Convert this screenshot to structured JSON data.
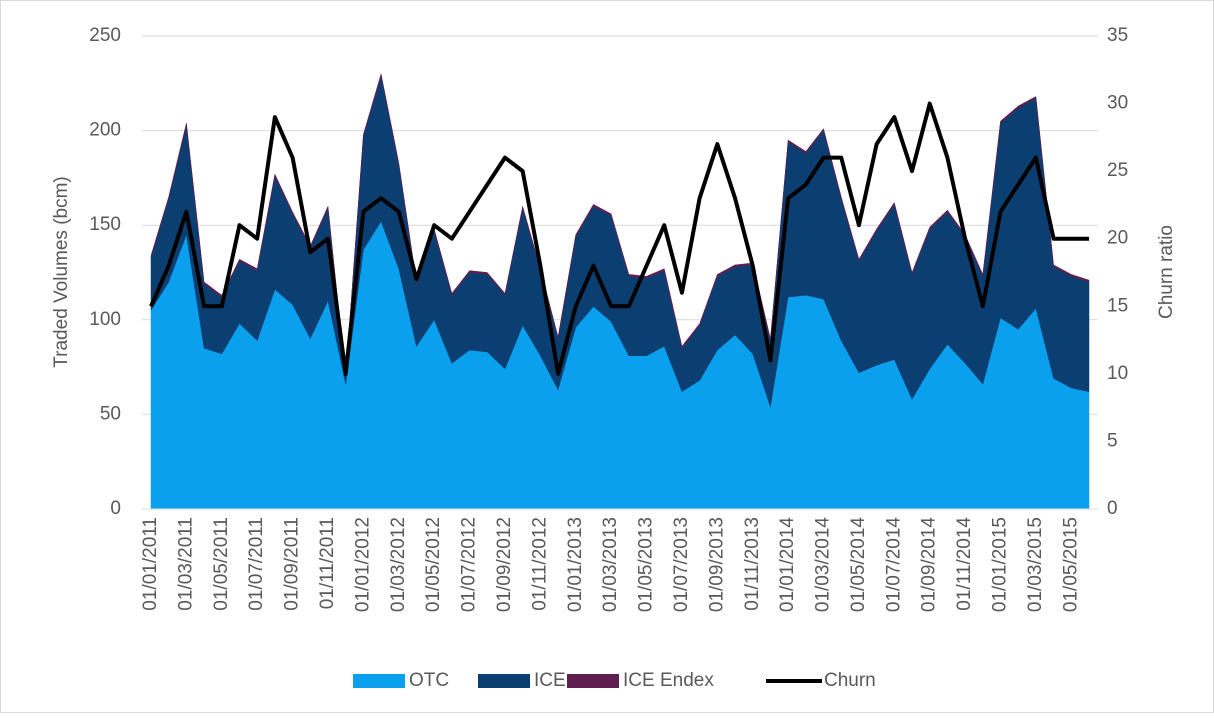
{
  "chart_data": {
    "type": "area",
    "stacked": true,
    "ylabel": "Traded Volumes (bcm)",
    "y2label": "Churn ratio",
    "categories": [
      "01/01/2011",
      null,
      "01/03/2011",
      null,
      "01/05/2011",
      null,
      "01/07/2011",
      null,
      "01/09/2011",
      null,
      "01/11/2011",
      null,
      "01/01/2012",
      null,
      "01/03/2012",
      null,
      "01/05/2012",
      null,
      "01/07/2012",
      null,
      "01/09/2012",
      null,
      "01/11/2012",
      null,
      "01/01/2013",
      null,
      "01/03/2013",
      null,
      "01/05/2013",
      null,
      "01/07/2013",
      null,
      "01/09/2013",
      null,
      "01/11/2013",
      null,
      "01/01/2014",
      null,
      "01/03/2014",
      null,
      "01/05/2014",
      null,
      "01/07/2014",
      null,
      "01/09/2014",
      null,
      "01/11/2014",
      null,
      "01/01/2015",
      null,
      "01/03/2015",
      null,
      "01/05/2015",
      null
    ],
    "series": [
      {
        "name": "OTC",
        "color": "#0aa0ee",
        "values": [
          105,
          120,
          145,
          85,
          82,
          98,
          89,
          116,
          108,
          90,
          110,
          66,
          137,
          152,
          127,
          86,
          100,
          77,
          84,
          83,
          74,
          97,
          81,
          63,
          96,
          107,
          99,
          81,
          81,
          86,
          62,
          68,
          84,
          92,
          82,
          54,
          112,
          113,
          111,
          89,
          72,
          76,
          79,
          58,
          74,
          87,
          77,
          66,
          101,
          95,
          106,
          69,
          64,
          62
        ]
      },
      {
        "name": "ICE",
        "color": "#0b3f72",
        "values": [
          28,
          44,
          58,
          34,
          30,
          33,
          37,
          60,
          48,
          48,
          49,
          3,
          60,
          77,
          55,
          33,
          47,
          36,
          41,
          41,
          39,
          62,
          45,
          27,
          48,
          53,
          56,
          42,
          41,
          40,
          23,
          29,
          39,
          36,
          47,
          35,
          82,
          75,
          89,
          75,
          59,
          71,
          82,
          66,
          74,
          70,
          67,
          57,
          103,
          117,
          111,
          59,
          59,
          58
        ]
      },
      {
        "name": "ICE Endex",
        "color": "#5e1f4f",
        "values": [
          1,
          1,
          1,
          1,
          1,
          1,
          1,
          1,
          1,
          1,
          1,
          1,
          1,
          1,
          1,
          1,
          1,
          1,
          1,
          1,
          1,
          1,
          1,
          1,
          1,
          1,
          1,
          1,
          1,
          1,
          1,
          1,
          1,
          1,
          1,
          1,
          1,
          1,
          1,
          1,
          1,
          1,
          1,
          1,
          1,
          1,
          1,
          1,
          1,
          1,
          1,
          1,
          1,
          1
        ]
      },
      {
        "name": "Churn",
        "color": "#000000",
        "type": "line",
        "axis": "y2",
        "values": [
          15,
          18,
          22,
          15,
          15,
          21,
          20,
          29,
          26,
          19,
          20,
          10,
          22,
          23,
          22,
          17,
          21,
          20,
          22,
          24,
          26,
          25,
          18,
          10,
          15,
          18,
          15,
          15,
          18,
          21,
          16,
          23,
          27,
          23,
          18,
          11,
          23,
          24,
          26,
          26,
          21,
          27,
          29,
          25,
          30,
          26,
          20,
          15,
          22,
          24,
          26,
          20,
          20,
          20
        ]
      }
    ],
    "ylim": [
      0,
      250
    ],
    "yticks": [
      0,
      50,
      100,
      150,
      200,
      250
    ],
    "y2lim": [
      0,
      35
    ],
    "y2ticks": [
      0,
      5,
      10,
      15,
      20,
      25,
      30,
      35
    ],
    "grid": true,
    "legend": "bottom"
  }
}
